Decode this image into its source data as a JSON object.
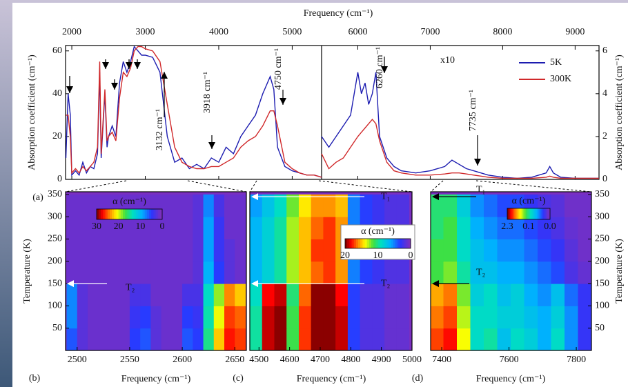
{
  "chart_data": [
    {
      "type": "line",
      "panel": "(a)",
      "xlabel": "Frequency (cm⁻¹)",
      "ylabel": "Absorption coefficient (cm⁻¹)",
      "yaxis": "left",
      "xlim": [
        1915,
        5400
      ],
      "xticks": [
        2000,
        3000,
        4000,
        5000
      ],
      "ylim": [
        0,
        62.5
      ],
      "yticks": [
        0,
        20,
        40,
        60
      ],
      "x": [
        1920,
        1950,
        1980,
        2000,
        2050,
        2100,
        2150,
        2200,
        2250,
        2300,
        2350,
        2380,
        2400,
        2450,
        2480,
        2500,
        2550,
        2600,
        2650,
        2700,
        2750,
        2800,
        2850,
        2900,
        2950,
        3000,
        3100,
        3200,
        3300,
        3400,
        3500,
        3600,
        3700,
        3800,
        3900,
        4000,
        4100,
        4200,
        4300,
        4400,
        4500,
        4600,
        4700,
        4750,
        4800,
        4900,
        5000,
        5100,
        5200,
        5300,
        5400
      ],
      "series": [
        {
          "color": "#1c1cb0",
          "values": [
            10,
            40,
            30,
            2,
            4,
            2,
            8,
            3,
            6,
            5,
            12,
            50,
            10,
            40,
            15,
            20,
            25,
            20,
            45,
            55,
            50,
            55,
            62,
            60,
            58,
            58,
            57,
            50,
            20,
            8,
            10,
            5,
            7,
            5,
            10,
            8,
            15,
            12,
            20,
            25,
            30,
            40,
            48,
            42,
            15,
            6,
            4,
            3,
            2,
            2,
            1
          ]
        },
        {
          "color": "#d0282a",
          "values": [
            30,
            30,
            20,
            3,
            5,
            3,
            6,
            4,
            6,
            8,
            15,
            55,
            12,
            42,
            18,
            20,
            22,
            18,
            38,
            50,
            48,
            52,
            60,
            62,
            62,
            61,
            60,
            55,
            35,
            15,
            8,
            6,
            5,
            5,
            6,
            6,
            8,
            10,
            15,
            18,
            20,
            25,
            32,
            32,
            25,
            8,
            5,
            3,
            2,
            2,
            1
          ]
        }
      ],
      "annotations": [
        "3132 cm⁻¹",
        "3918 cm⁻¹",
        "4750 cm⁻¹"
      ]
    },
    {
      "type": "line",
      "ylabel": "Absorption coefficient (cm⁻¹)",
      "yaxis": "right",
      "scale_label": "x10",
      "legend": "top-right",
      "xlim": [
        5500,
        9330
      ],
      "xticks": [
        6000,
        7000,
        8000,
        9000
      ],
      "ylim": [
        0,
        6.25
      ],
      "yticks": [
        0,
        2,
        4,
        6
      ],
      "x": [
        5500,
        5600,
        5700,
        5800,
        5900,
        6000,
        6050,
        6100,
        6150,
        6200,
        6250,
        6300,
        6400,
        6500,
        6600,
        6800,
        7000,
        7200,
        7300,
        7400,
        7500,
        7600,
        7700,
        7800,
        8000,
        8200,
        8400,
        8600,
        8650,
        8700,
        8800,
        9000,
        9200,
        9330
      ],
      "series": [
        {
          "name": "5K",
          "color": "#1c1cb0",
          "values": [
            2,
            1.5,
            2,
            2.5,
            3,
            5,
            4,
            4.5,
            3.5,
            4,
            5,
            2,
            1,
            0.6,
            0.4,
            0.3,
            0.4,
            0.6,
            0.9,
            0.7,
            0.5,
            0.4,
            0.3,
            0.2,
            0.1,
            0.05,
            0.1,
            0.3,
            0.6,
            0.3,
            0.1,
            0.05,
            0.05,
            0.05
          ]
        },
        {
          "name": "300K",
          "color": "#d0282a",
          "values": [
            1.2,
            0.5,
            0.8,
            1,
            1.5,
            2,
            2.2,
            2.4,
            2.6,
            2.8,
            2.6,
            1.8,
            0.8,
            0.4,
            0.3,
            0.2,
            0.2,
            0.25,
            0.3,
            0.3,
            0.25,
            0.2,
            0.15,
            0.1,
            0.05,
            0.05,
            0.05,
            0.1,
            0.15,
            0.1,
            0.05,
            0.05,
            0.05,
            0.05
          ]
        }
      ],
      "annotations": [
        "6260 cm⁻¹",
        "7735 cm⁻¹"
      ]
    },
    {
      "type": "heatmap",
      "panel": "(b)",
      "xlabel": "Frequency (cm⁻¹)",
      "ylabel": "Temperature (K)",
      "yaxis": "left",
      "xlim": [
        2489,
        2661
      ],
      "xticks": [
        2500,
        2550,
        2600,
        2650
      ],
      "ylim": [
        0,
        356
      ],
      "yticks": [
        50,
        100,
        150,
        200,
        250,
        300,
        350
      ],
      "x": [
        2495,
        2505,
        2515,
        2525,
        2535,
        2545,
        2555,
        2565,
        2575,
        2585,
        2595,
        2605,
        2615,
        2625,
        2635,
        2645,
        2655
      ],
      "y": [
        25,
        75,
        125,
        175,
        225,
        275,
        325
      ],
      "z": [
        [
          6,
          2,
          1,
          1,
          1,
          1,
          5,
          6,
          2,
          1,
          1,
          6,
          5,
          16,
          24,
          29,
          28
        ],
        [
          8,
          2,
          1,
          1,
          1,
          1,
          4,
          5,
          2,
          1,
          1,
          5,
          4,
          15,
          22,
          28,
          27
        ],
        [
          8,
          2,
          1,
          1,
          1,
          1,
          3,
          3,
          1,
          1,
          1,
          3,
          3,
          14,
          20,
          26,
          24
        ],
        [
          1,
          1,
          1,
          1,
          1,
          1,
          1,
          1,
          1,
          1,
          1,
          1,
          2,
          10,
          5,
          2,
          1
        ],
        [
          1,
          1,
          1,
          1,
          1,
          1,
          1,
          1,
          1,
          1,
          1,
          1,
          2,
          9,
          4,
          2,
          1
        ],
        [
          1,
          1,
          1,
          1,
          1,
          1,
          1,
          1,
          1,
          1,
          1,
          1,
          2,
          9,
          4,
          1,
          1
        ],
        [
          1,
          1,
          1,
          1,
          1,
          1,
          1,
          1,
          1,
          1,
          1,
          1,
          2,
          8,
          3,
          1,
          1
        ]
      ],
      "zlim": [
        0,
        32
      ],
      "colorbar": {
        "title": "α (cm⁻¹)",
        "ticks": [
          30,
          20,
          10,
          0
        ]
      },
      "markers": [
        {
          "label": "T₂",
          "value": 150
        }
      ]
    },
    {
      "type": "heatmap",
      "panel": "(c)",
      "xlabel": "Frequency (cm⁻¹)",
      "xlim": [
        4470,
        5000
      ],
      "xticks": [
        4500,
        4600,
        4700,
        4800,
        4900,
        5000
      ],
      "ylim": [
        0,
        356
      ],
      "x": [
        4490,
        4530,
        4570,
        4610,
        4650,
        4690,
        4730,
        4770,
        4810,
        4850,
        4890,
        4930,
        4970
      ],
      "y": [
        25,
        75,
        125,
        175,
        225,
        275,
        325
      ],
      "z": [
        [
          12,
          24,
          25,
          14,
          22,
          26,
          27,
          24,
          4,
          2,
          2,
          1,
          1
        ],
        [
          12,
          24,
          25,
          14,
          22,
          26,
          27,
          24,
          4,
          2,
          2,
          1,
          1
        ],
        [
          11,
          23,
          24,
          13,
          21,
          25,
          26,
          23,
          4,
          2,
          2,
          1,
          1
        ],
        [
          8,
          10,
          12,
          16,
          19,
          21,
          22,
          20,
          6,
          4,
          3,
          2,
          2
        ],
        [
          8,
          10,
          12,
          16,
          19,
          22,
          22,
          20,
          6,
          4,
          3,
          2,
          2
        ],
        [
          8,
          10,
          12,
          16,
          19,
          21,
          22,
          20,
          6,
          4,
          3,
          2,
          2
        ],
        [
          7,
          9,
          11,
          15,
          18,
          20,
          20,
          19,
          6,
          4,
          3,
          2,
          2
        ]
      ],
      "zlim": [
        0,
        25
      ],
      "colorbar": {
        "title": "α (cm⁻¹)",
        "ticks": [
          20,
          10,
          0
        ]
      },
      "markers": [
        {
          "label": "T₁",
          "value": 345
        },
        {
          "label": "T₂",
          "value": 150
        }
      ]
    },
    {
      "type": "heatmap",
      "panel": "(d)",
      "xlabel": "Frequency (cm⁻¹)",
      "ylabel": "Temperature (K)",
      "yaxis": "right",
      "xlim": [
        7367,
        7845
      ],
      "xticks": [
        7400,
        7600,
        7800
      ],
      "ylim": [
        0,
        356
      ],
      "yticks": [
        50,
        100,
        150,
        200,
        250,
        300,
        350
      ],
      "x": [
        7385,
        7425,
        7465,
        7505,
        7545,
        7585,
        7625,
        7665,
        7705,
        7745,
        7785,
        7825
      ],
      "y": [
        25,
        75,
        125,
        175,
        225,
        275,
        325
      ],
      "z": [
        [
          2.0,
          2.1,
          1.6,
          1.0,
          1.1,
          0.8,
          1.0,
          0.9,
          0.7,
          1.0,
          0.6,
          0.3
        ],
        [
          1.9,
          2.0,
          1.5,
          1.0,
          1.0,
          0.9,
          0.9,
          0.8,
          0.7,
          0.9,
          0.6,
          0.3
        ],
        [
          1.8,
          1.9,
          1.4,
          0.9,
          1.0,
          0.8,
          0.9,
          0.7,
          0.6,
          0.8,
          0.5,
          0.3
        ],
        [
          1.3,
          1.4,
          1.1,
          0.8,
          0.8,
          0.7,
          0.7,
          0.6,
          0.5,
          0.4,
          0.2,
          0.1
        ],
        [
          1.3,
          1.3,
          1.0,
          0.8,
          0.7,
          0.6,
          0.6,
          0.5,
          0.4,
          0.3,
          0.15,
          0.05
        ],
        [
          1.2,
          1.3,
          1.0,
          0.7,
          0.6,
          0.5,
          0.5,
          0.4,
          0.3,
          0.2,
          0.1,
          0.05
        ],
        [
          1.2,
          1.2,
          0.9,
          0.6,
          0.5,
          0.4,
          0.4,
          0.3,
          0.2,
          0.15,
          0.05,
          0.05
        ]
      ],
      "zlim": [
        0,
        2.3
      ],
      "colorbar": {
        "title": "α (cm⁻¹)",
        "ticks": [
          2.3,
          0.1,
          {
            "value": 0,
            "label": "0.0"
          }
        ]
      },
      "markers": [
        {
          "label": "T₁",
          "value": 345
        },
        {
          "label": "T₂",
          "value": 150
        }
      ]
    }
  ]
}
